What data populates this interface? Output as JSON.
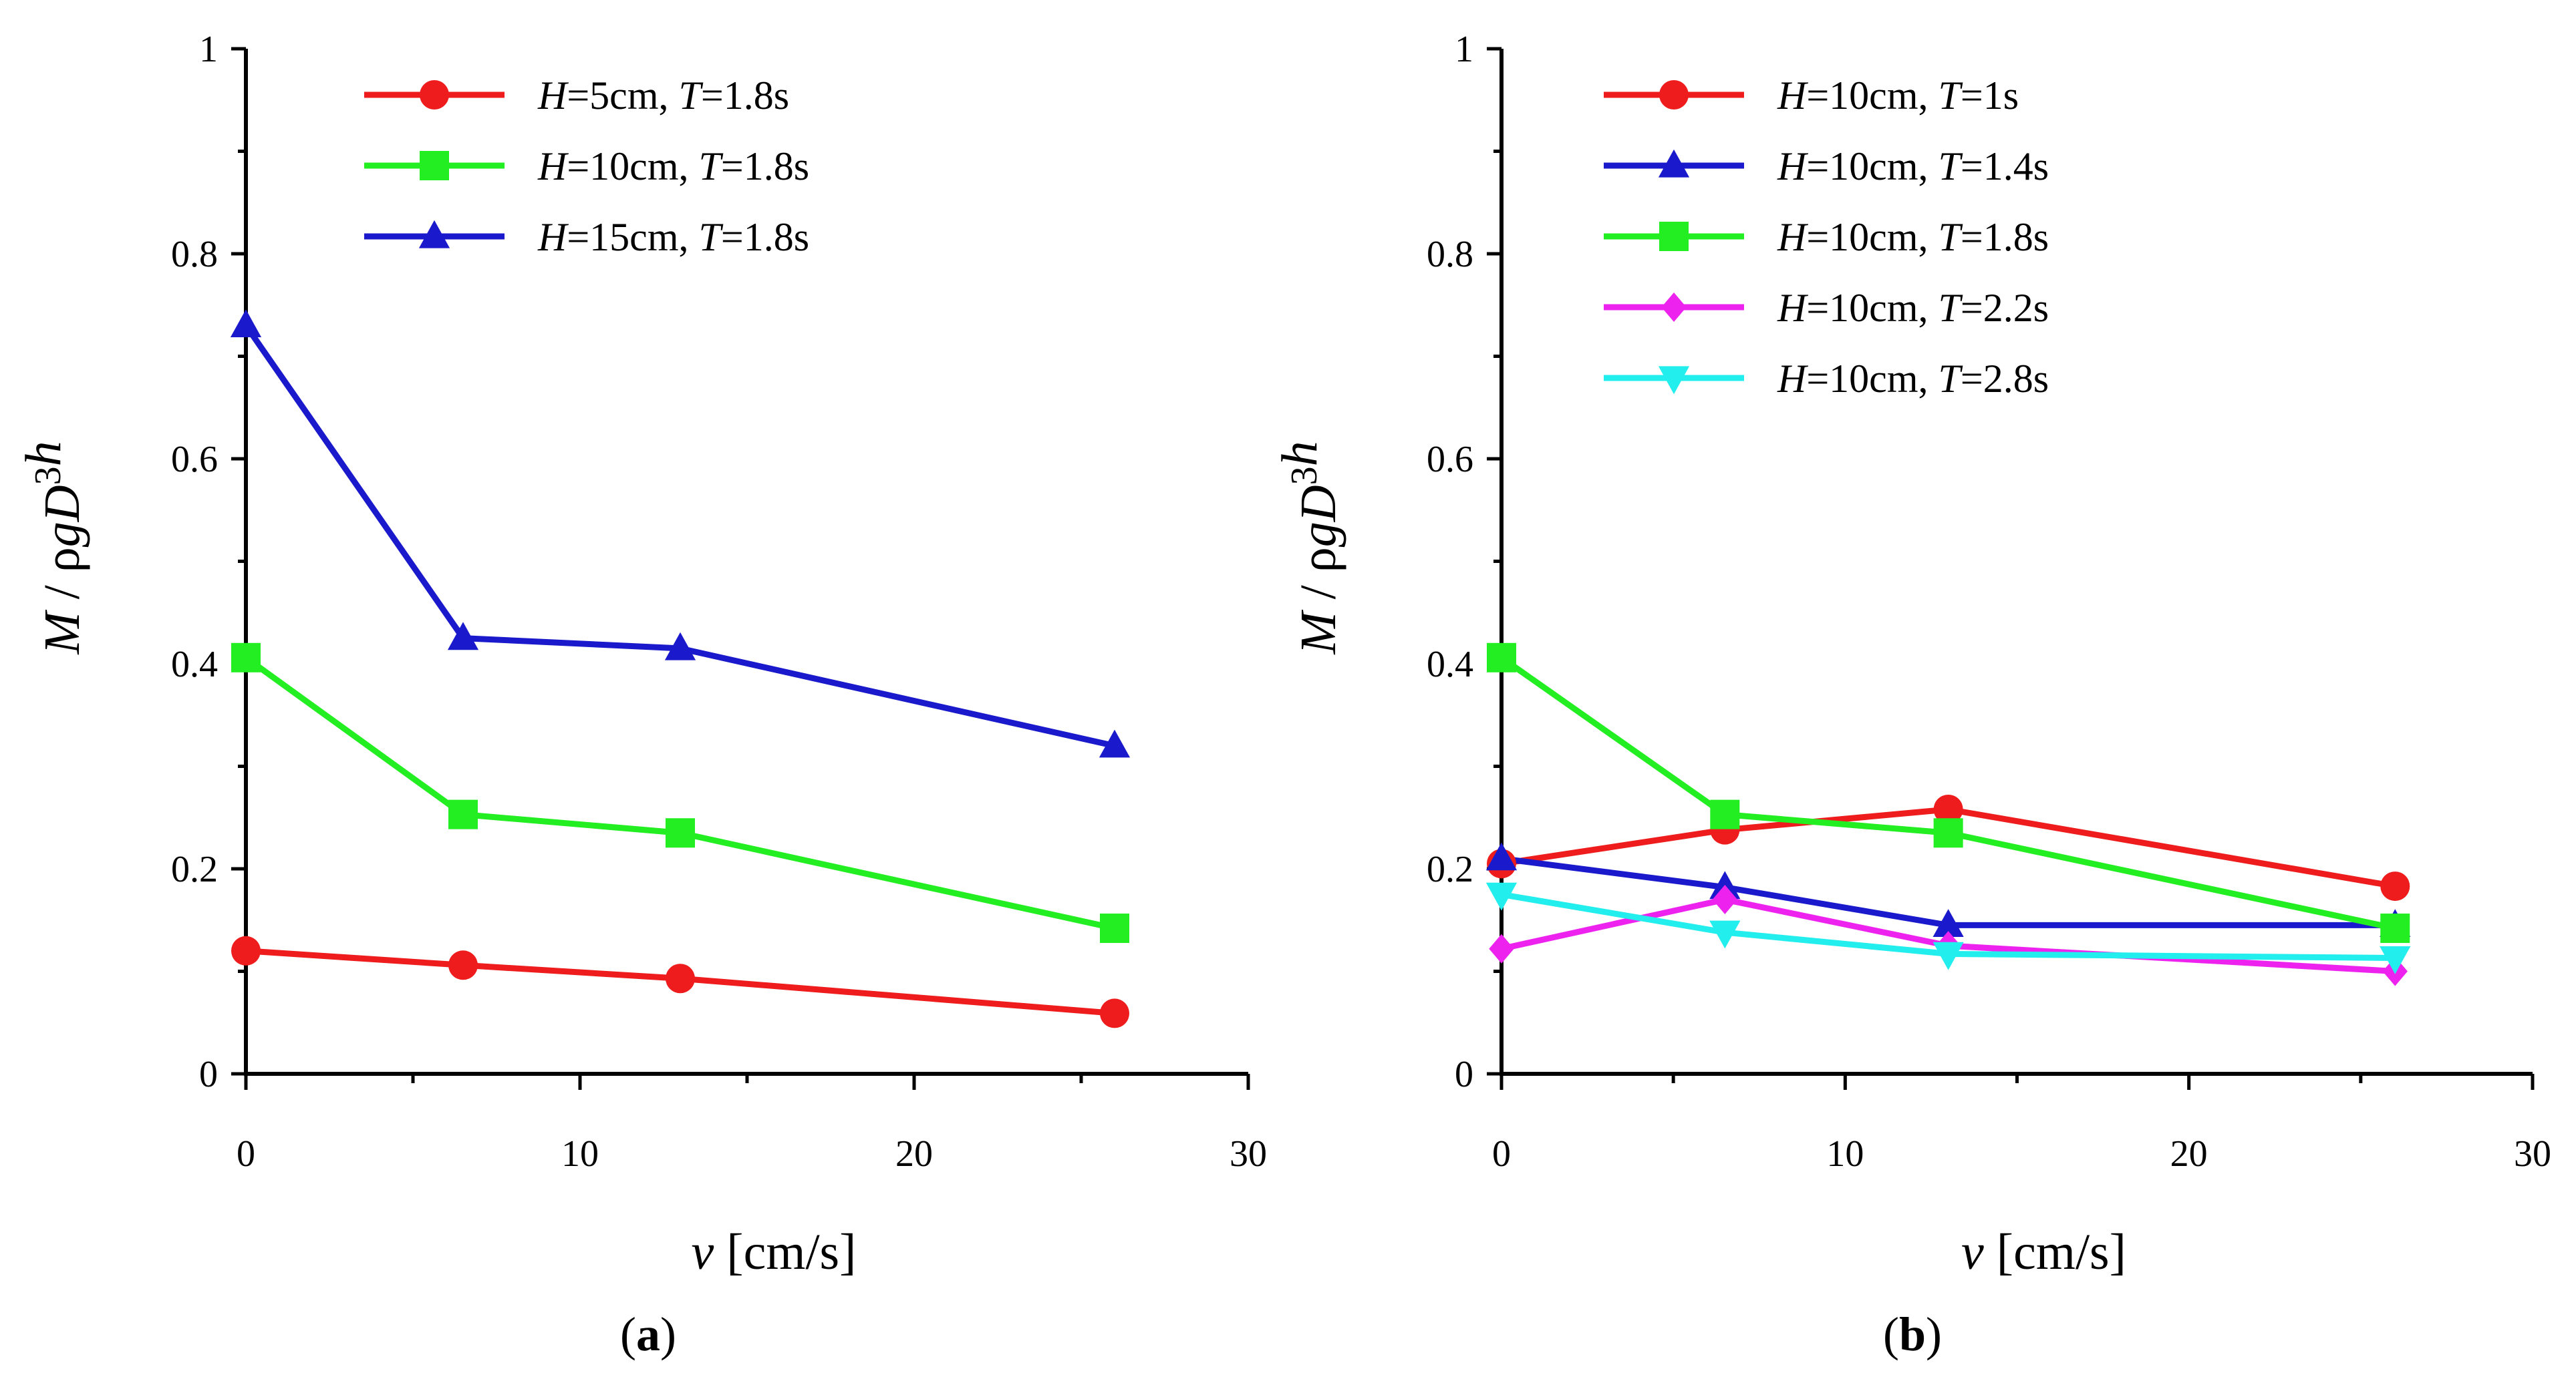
{
  "chart_data": [
    {
      "type": "line",
      "panel_label": "a",
      "xlabel_var": "v",
      "xlabel_unit": "[cm/s]",
      "ylabel": "M / ρgD3h",
      "xlim": [
        0,
        30
      ],
      "ylim": [
        0,
        1
      ],
      "xticks": [
        0,
        10,
        20,
        30
      ],
      "yticks": [
        0,
        0.2,
        0.4,
        0.6,
        0.8,
        1
      ],
      "ytick_labels": [
        "0",
        "0.2",
        "0.4",
        "0.6",
        "0.8",
        "1"
      ],
      "x": [
        0,
        6.5,
        13,
        26
      ],
      "series": [
        {
          "name": "H=5cm, T=1.8s",
          "H": "5cm",
          "T": "1.8s",
          "color": "#ee1c1c",
          "marker": "circle",
          "values": [
            0.12,
            0.106,
            0.093,
            0.059
          ]
        },
        {
          "name": "H=10cm, T=1.8s",
          "H": "10cm",
          "T": "1.8s",
          "color": "#22ee22",
          "marker": "square",
          "values": [
            0.406,
            0.253,
            0.235,
            0.142
          ]
        },
        {
          "name": "H=15cm, T=1.8s",
          "H": "15cm",
          "T": "1.8s",
          "color": "#1a1acc",
          "marker": "triangle",
          "values": [
            0.73,
            0.425,
            0.415,
            0.32
          ]
        }
      ]
    },
    {
      "type": "line",
      "panel_label": "b",
      "xlabel_var": "v",
      "xlabel_unit": "[cm/s]",
      "ylabel": "M / ρgD3h",
      "xlim": [
        0,
        30
      ],
      "ylim": [
        0,
        1
      ],
      "xticks": [
        0,
        10,
        20,
        30
      ],
      "yticks": [
        0,
        0.2,
        0.4,
        0.6,
        0.8,
        1
      ],
      "ytick_labels": [
        "0",
        "0.2",
        "0.4",
        "0.6",
        "0.8",
        "1"
      ],
      "x": [
        0,
        6.5,
        13,
        26
      ],
      "series": [
        {
          "name": "H=10cm, T=1s",
          "H": "10cm",
          "T": "1s",
          "color": "#ee1c1c",
          "marker": "circle",
          "values": [
            0.205,
            0.238,
            0.258,
            0.183
          ]
        },
        {
          "name": "H=10cm, T=1.4s",
          "H": "10cm",
          "T": "1.4s",
          "color": "#1a1acc",
          "marker": "triangle",
          "values": [
            0.21,
            0.182,
            0.145,
            0.145
          ]
        },
        {
          "name": "H=10cm, T=1.8s",
          "H": "10cm",
          "T": "1.8s",
          "color": "#22ee22",
          "marker": "square",
          "values": [
            0.406,
            0.253,
            0.235,
            0.142
          ]
        },
        {
          "name": "H=10cm, T=2.2s",
          "H": "10cm",
          "T": "2.2s",
          "color": "#ee22ee",
          "marker": "diamond",
          "values": [
            0.122,
            0.17,
            0.125,
            0.1
          ]
        },
        {
          "name": "H=10cm, T=2.8s",
          "H": "10cm",
          "T": "2.8s",
          "color": "#22eeee",
          "marker": "triangle-down",
          "values": [
            0.175,
            0.138,
            0.117,
            0.113
          ]
        }
      ]
    }
  ]
}
